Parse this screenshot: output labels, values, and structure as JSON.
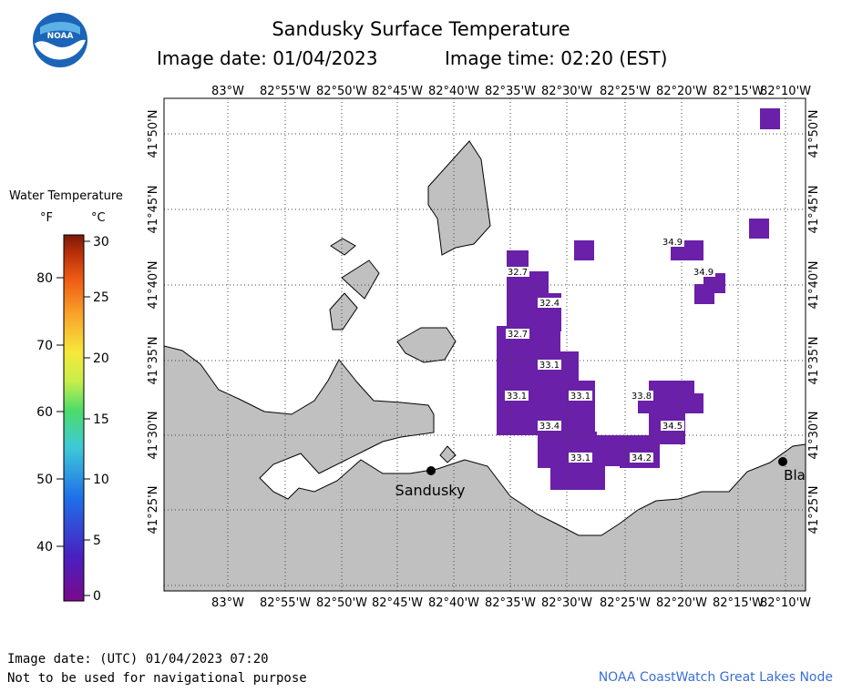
{
  "header": {
    "title": "Sandusky Surface Temperature",
    "image_date": "Image date: 01/04/2023",
    "image_time": "Image time: 02:20 (EST)",
    "logo_text": "NOAA"
  },
  "axes": {
    "lon_ticks": [
      "83°W",
      "82°55'W",
      "82°50'W",
      "82°45'W",
      "82°40'W",
      "82°35'W",
      "82°30'W",
      "82°25'W",
      "82°20'W",
      "82°15'W",
      "82°10'W"
    ],
    "lat_ticks": [
      "41°50'N",
      "41°45'N",
      "41°40'N",
      "41°35'N",
      "41°30'N",
      "41°25'N"
    ]
  },
  "places": [
    {
      "name": "Sandusky"
    },
    {
      "name": "Bla"
    }
  ],
  "temperature_labels": [
    "34.9",
    "32.7",
    "32.4",
    "34.9",
    "32.7",
    "33.1",
    "33.1",
    "33.1",
    "33.8",
    "33.4",
    "34.5",
    "33.1",
    "34.2"
  ],
  "legend": {
    "title": "Water Temperature",
    "unit_f": "°F",
    "unit_c": "°C",
    "fahrenheit_ticks": [
      "80",
      "70",
      "60",
      "50",
      "40"
    ],
    "celsius_ticks": [
      "30",
      "25",
      "20",
      "15",
      "10",
      "5",
      "0"
    ],
    "colors": [
      "#7a0a8c",
      "#4a1fbf",
      "#1f6fe8",
      "#3ec9d8",
      "#4bdc6a",
      "#c8ee4a",
      "#f7e83a",
      "#f8a52a",
      "#ee5a14",
      "#b8300a",
      "#7a1a08"
    ]
  },
  "colors": {
    "land": "#c0c0c0",
    "water_cell": "#6a20a8"
  },
  "footer": {
    "utc": "Image date: (UTC) 01/04/2023  07:20",
    "disclaimer": "Not to be used for navigational purpose",
    "credit": "NOAA CoastWatch Great Lakes Node"
  }
}
